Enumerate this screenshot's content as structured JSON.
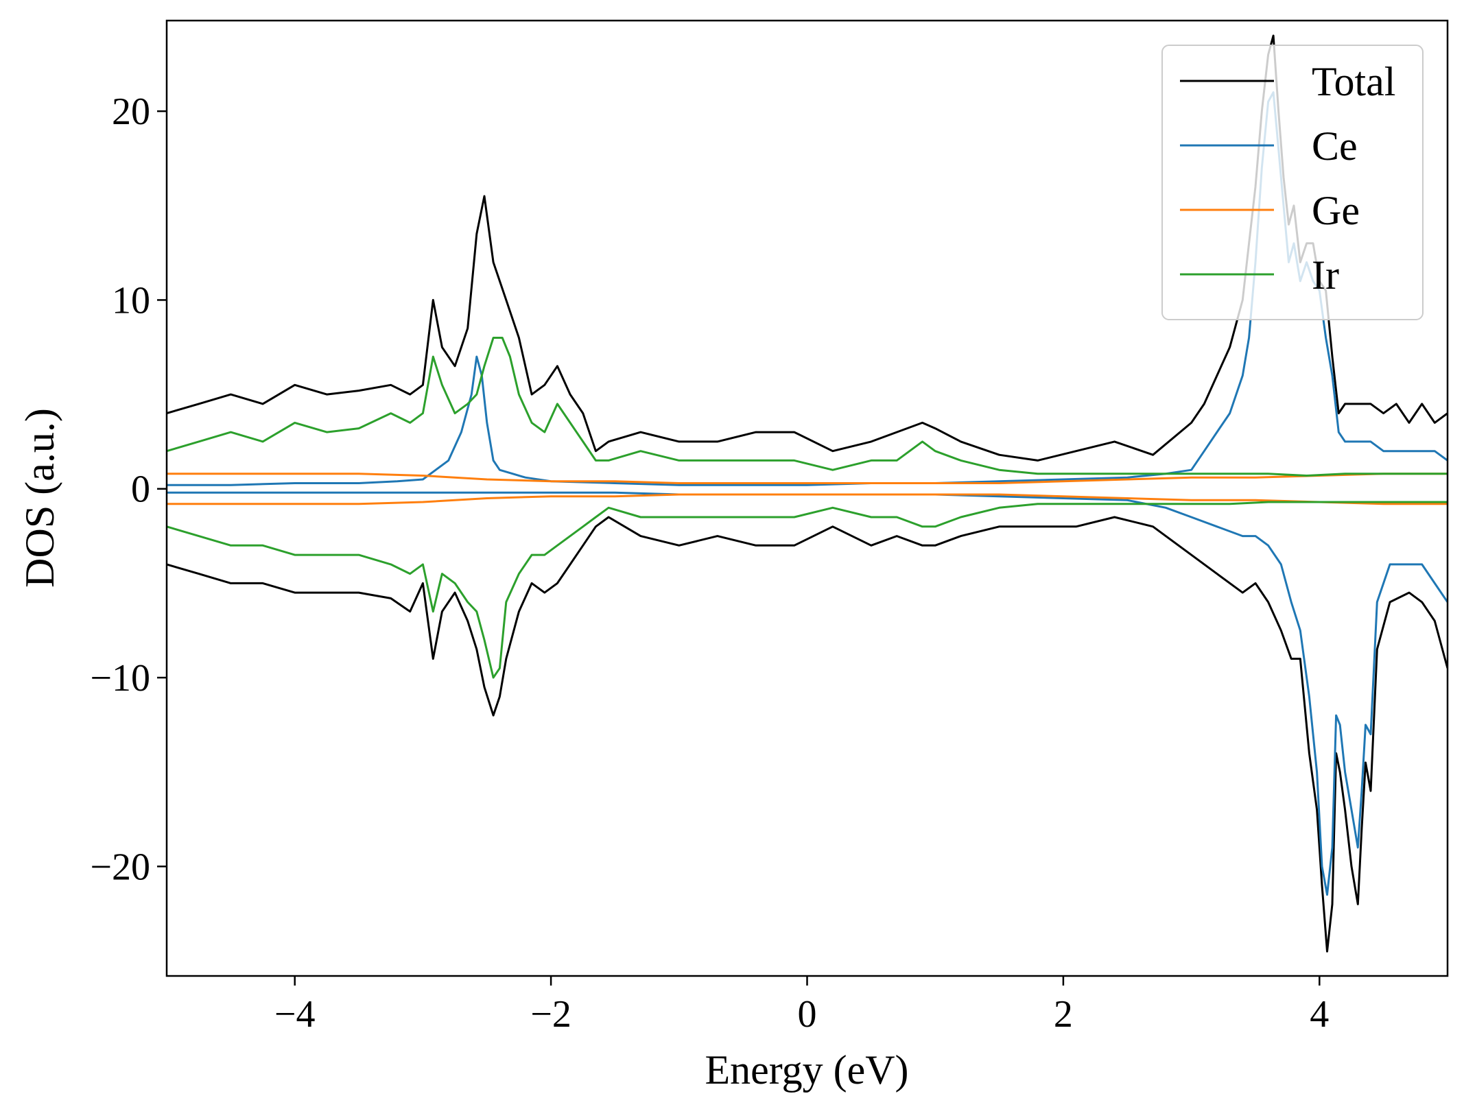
{
  "chart_data": {
    "type": "line",
    "title": "",
    "xlabel": "Energy (eV)",
    "ylabel": "DOS (a.u.)",
    "xlim": [
      -5,
      5
    ],
    "ylim": [
      -25.8,
      24.8
    ],
    "xticks": [
      -4,
      -2,
      0,
      2,
      4
    ],
    "yticks": [
      -20,
      -10,
      0,
      10,
      20
    ],
    "xtick_labels": [
      "−4",
      "−2",
      "0",
      "2",
      "4"
    ],
    "ytick_labels": [
      "−20",
      "−10",
      "0",
      "10",
      "20"
    ],
    "grid": false,
    "legend_position": "top-right",
    "legend": [
      "Total",
      "Ce",
      "Ge",
      "Ir"
    ],
    "series": [
      {
        "name": "Total",
        "color": "#000000",
        "x": [
          -5.0,
          -4.75,
          -4.5,
          -4.25,
          -4.0,
          -3.75,
          -3.5,
          -3.25,
          -3.1,
          -3.0,
          -2.92,
          -2.85,
          -2.75,
          -2.65,
          -2.58,
          -2.52,
          -2.45,
          -2.35,
          -2.25,
          -2.15,
          -2.05,
          -1.95,
          -1.85,
          -1.75,
          -1.65,
          -1.55,
          -1.3,
          -1.0,
          -0.7,
          -0.4,
          -0.1,
          0.2,
          0.5,
          0.7,
          0.9,
          1.0,
          1.2,
          1.5,
          1.8,
          2.1,
          2.4,
          2.7,
          3.0,
          3.1,
          3.2,
          3.3,
          3.4,
          3.45,
          3.5,
          3.55,
          3.6,
          3.64,
          3.68,
          3.72,
          3.76,
          3.8,
          3.85,
          3.9,
          3.95,
          4.0,
          4.05,
          4.1,
          4.15,
          4.2,
          4.3,
          4.4,
          4.5,
          4.6,
          4.7,
          4.8,
          4.9,
          5.0
        ],
        "values": [
          4.0,
          4.5,
          5.0,
          4.5,
          5.5,
          5.0,
          5.2,
          5.5,
          5.0,
          5.5,
          10.0,
          7.5,
          6.5,
          8.5,
          13.5,
          15.5,
          12.0,
          10.0,
          8.0,
          5.0,
          5.5,
          6.5,
          5.0,
          4.0,
          2.0,
          2.5,
          3.0,
          2.5,
          2.5,
          3.0,
          3.0,
          2.0,
          2.5,
          3.0,
          3.5,
          3.2,
          2.5,
          1.8,
          1.5,
          2.0,
          2.5,
          1.8,
          3.5,
          4.5,
          6.0,
          7.5,
          10.0,
          13.0,
          16.0,
          20.0,
          23.0,
          24.0,
          20.0,
          16.5,
          14.0,
          15.0,
          12.0,
          13.0,
          13.0,
          11.0,
          10.5,
          7.0,
          4.0,
          4.5,
          4.5,
          4.5,
          4.0,
          4.5,
          3.5,
          4.5,
          3.5,
          4.0
        ]
      },
      {
        "name": "Total",
        "color": "#000000",
        "x": [
          -5.0,
          -4.75,
          -4.5,
          -4.25,
          -4.0,
          -3.75,
          -3.5,
          -3.25,
          -3.1,
          -3.0,
          -2.92,
          -2.85,
          -2.75,
          -2.65,
          -2.58,
          -2.52,
          -2.45,
          -2.4,
          -2.35,
          -2.25,
          -2.15,
          -2.05,
          -1.95,
          -1.85,
          -1.75,
          -1.65,
          -1.55,
          -1.3,
          -1.0,
          -0.7,
          -0.4,
          -0.1,
          0.2,
          0.5,
          0.7,
          0.9,
          1.0,
          1.2,
          1.5,
          1.8,
          2.1,
          2.4,
          2.7,
          3.0,
          3.2,
          3.4,
          3.5,
          3.6,
          3.7,
          3.78,
          3.85,
          3.92,
          3.98,
          4.02,
          4.06,
          4.1,
          4.13,
          4.16,
          4.2,
          4.25,
          4.3,
          4.33,
          4.36,
          4.4,
          4.45,
          4.55,
          4.7,
          4.8,
          4.9,
          5.0
        ],
        "values": [
          -4.0,
          -4.5,
          -5.0,
          -5.0,
          -5.5,
          -5.5,
          -5.5,
          -5.8,
          -6.5,
          -5.0,
          -9.0,
          -6.5,
          -5.5,
          -7.0,
          -8.5,
          -10.5,
          -12.0,
          -11.0,
          -9.0,
          -6.5,
          -5.0,
          -5.5,
          -5.0,
          -4.0,
          -3.0,
          -2.0,
          -1.5,
          -2.5,
          -3.0,
          -2.5,
          -3.0,
          -3.0,
          -2.0,
          -3.0,
          -2.5,
          -3.0,
          -3.0,
          -2.5,
          -2.0,
          -2.0,
          -2.0,
          -1.5,
          -2.0,
          -3.5,
          -4.5,
          -5.5,
          -5.0,
          -6.0,
          -7.5,
          -9.0,
          -9.0,
          -14.0,
          -17.0,
          -21.0,
          -24.5,
          -22.0,
          -14.0,
          -15.0,
          -17.0,
          -20.0,
          -22.0,
          -18.0,
          -14.5,
          -16.0,
          -8.5,
          -6.0,
          -5.5,
          -6.0,
          -7.0,
          -9.5
        ]
      },
      {
        "name": "Ce",
        "color": "#1f77b4",
        "x": [
          -5.0,
          -4.5,
          -4.0,
          -3.5,
          -3.2,
          -3.0,
          -2.9,
          -2.8,
          -2.7,
          -2.62,
          -2.58,
          -2.54,
          -2.5,
          -2.45,
          -2.4,
          -2.3,
          -2.2,
          -2.0,
          -1.5,
          -1.0,
          -0.5,
          0.0,
          0.5,
          1.0,
          1.5,
          2.0,
          2.5,
          2.8,
          3.0,
          3.1,
          3.2,
          3.3,
          3.4,
          3.45,
          3.5,
          3.55,
          3.6,
          3.64,
          3.68,
          3.72,
          3.76,
          3.8,
          3.85,
          3.9,
          3.95,
          4.0,
          4.05,
          4.1,
          4.15,
          4.2,
          4.3,
          4.4,
          4.5,
          4.6,
          4.7,
          4.8,
          4.9,
          5.0
        ],
        "values": [
          0.2,
          0.2,
          0.3,
          0.3,
          0.4,
          0.5,
          1.0,
          1.5,
          3.0,
          5.0,
          7.0,
          6.0,
          3.5,
          1.5,
          1.0,
          0.8,
          0.6,
          0.4,
          0.3,
          0.2,
          0.2,
          0.2,
          0.3,
          0.3,
          0.4,
          0.5,
          0.6,
          0.8,
          1.0,
          2.0,
          3.0,
          4.0,
          6.0,
          8.0,
          12.0,
          17.0,
          20.5,
          21.0,
          18.0,
          15.0,
          12.0,
          13.0,
          11.0,
          12.0,
          11.0,
          10.5,
          8.0,
          6.0,
          3.0,
          2.5,
          2.5,
          2.5,
          2.0,
          2.0,
          2.0,
          2.0,
          2.0,
          1.5
        ]
      },
      {
        "name": "Ce",
        "color": "#1f77b4",
        "x": [
          -5.0,
          -4.5,
          -4.0,
          -3.5,
          -3.0,
          -2.5,
          -2.0,
          -1.5,
          -1.0,
          -0.5,
          0.0,
          0.5,
          1.0,
          1.5,
          2.0,
          2.5,
          2.8,
          3.0,
          3.2,
          3.4,
          3.5,
          3.6,
          3.7,
          3.78,
          3.85,
          3.92,
          3.98,
          4.02,
          4.06,
          4.1,
          4.13,
          4.16,
          4.2,
          4.25,
          4.3,
          4.33,
          4.36,
          4.4,
          4.45,
          4.55,
          4.7,
          4.8,
          4.9,
          5.0
        ],
        "values": [
          -0.2,
          -0.2,
          -0.2,
          -0.2,
          -0.2,
          -0.2,
          -0.2,
          -0.2,
          -0.3,
          -0.3,
          -0.3,
          -0.3,
          -0.3,
          -0.4,
          -0.5,
          -0.6,
          -1.0,
          -1.5,
          -2.0,
          -2.5,
          -2.5,
          -3.0,
          -4.0,
          -6.0,
          -7.5,
          -11.0,
          -15.0,
          -20.0,
          -21.5,
          -19.0,
          -12.0,
          -12.5,
          -15.0,
          -17.0,
          -19.0,
          -16.0,
          -12.5,
          -13.0,
          -6.0,
          -4.0,
          -4.0,
          -4.0,
          -5.0,
          -6.0
        ]
      },
      {
        "name": "Ge",
        "color": "#ff7f0e",
        "x": [
          -5.0,
          -4.5,
          -4.0,
          -3.5,
          -3.0,
          -2.5,
          -2.0,
          -1.5,
          -1.0,
          -0.5,
          0.0,
          0.5,
          1.0,
          1.5,
          2.0,
          2.5,
          3.0,
          3.5,
          4.0,
          4.5,
          5.0
        ],
        "values": [
          0.8,
          0.8,
          0.8,
          0.8,
          0.7,
          0.5,
          0.4,
          0.4,
          0.3,
          0.3,
          0.3,
          0.3,
          0.3,
          0.3,
          0.4,
          0.5,
          0.6,
          0.6,
          0.7,
          0.8,
          0.8
        ]
      },
      {
        "name": "Ge",
        "color": "#ff7f0e",
        "x": [
          -5.0,
          -4.5,
          -4.0,
          -3.5,
          -3.0,
          -2.5,
          -2.0,
          -1.5,
          -1.0,
          -0.5,
          0.0,
          0.5,
          1.0,
          1.5,
          2.0,
          2.5,
          3.0,
          3.5,
          4.0,
          4.5,
          5.0
        ],
        "values": [
          -0.8,
          -0.8,
          -0.8,
          -0.8,
          -0.7,
          -0.5,
          -0.4,
          -0.4,
          -0.3,
          -0.3,
          -0.3,
          -0.3,
          -0.3,
          -0.3,
          -0.4,
          -0.5,
          -0.6,
          -0.6,
          -0.7,
          -0.8,
          -0.8
        ]
      },
      {
        "name": "Ir",
        "color": "#2ca02c",
        "x": [
          -5.0,
          -4.75,
          -4.5,
          -4.25,
          -4.0,
          -3.75,
          -3.5,
          -3.25,
          -3.1,
          -3.0,
          -2.92,
          -2.85,
          -2.75,
          -2.65,
          -2.58,
          -2.52,
          -2.45,
          -2.38,
          -2.32,
          -2.25,
          -2.15,
          -2.05,
          -1.95,
          -1.85,
          -1.75,
          -1.65,
          -1.55,
          -1.3,
          -1.0,
          -0.7,
          -0.4,
          -0.1,
          0.2,
          0.5,
          0.7,
          0.9,
          1.0,
          1.2,
          1.5,
          1.8,
          2.1,
          2.4,
          2.7,
          3.0,
          3.3,
          3.6,
          3.9,
          4.2,
          4.5,
          4.8,
          5.0
        ],
        "values": [
          2.0,
          2.5,
          3.0,
          2.5,
          3.5,
          3.0,
          3.2,
          4.0,
          3.5,
          4.0,
          7.0,
          5.5,
          4.0,
          4.5,
          5.0,
          6.5,
          8.0,
          8.0,
          7.0,
          5.0,
          3.5,
          3.0,
          4.5,
          3.5,
          2.5,
          1.5,
          1.5,
          2.0,
          1.5,
          1.5,
          1.5,
          1.5,
          1.0,
          1.5,
          1.5,
          2.5,
          2.0,
          1.5,
          1.0,
          0.8,
          0.8,
          0.8,
          0.8,
          0.8,
          0.8,
          0.8,
          0.7,
          0.8,
          0.8,
          0.8,
          0.8
        ]
      },
      {
        "name": "Ir",
        "color": "#2ca02c",
        "x": [
          -5.0,
          -4.75,
          -4.5,
          -4.25,
          -4.0,
          -3.75,
          -3.5,
          -3.25,
          -3.1,
          -3.0,
          -2.92,
          -2.85,
          -2.75,
          -2.65,
          -2.58,
          -2.52,
          -2.45,
          -2.4,
          -2.35,
          -2.25,
          -2.15,
          -2.05,
          -1.95,
          -1.85,
          -1.75,
          -1.65,
          -1.55,
          -1.3,
          -1.0,
          -0.7,
          -0.4,
          -0.1,
          0.2,
          0.5,
          0.7,
          0.9,
          1.0,
          1.2,
          1.5,
          1.8,
          2.1,
          2.4,
          2.7,
          3.0,
          3.3,
          3.6,
          3.9,
          4.2,
          4.5,
          4.8,
          5.0
        ],
        "values": [
          -2.0,
          -2.5,
          -3.0,
          -3.0,
          -3.5,
          -3.5,
          -3.5,
          -4.0,
          -4.5,
          -4.0,
          -6.5,
          -4.5,
          -5.0,
          -6.0,
          -6.5,
          -8.0,
          -10.0,
          -9.5,
          -6.0,
          -4.5,
          -3.5,
          -3.5,
          -3.0,
          -2.5,
          -2.0,
          -1.5,
          -1.0,
          -1.5,
          -1.5,
          -1.5,
          -1.5,
          -1.5,
          -1.0,
          -1.5,
          -1.5,
          -2.0,
          -2.0,
          -1.5,
          -1.0,
          -0.8,
          -0.8,
          -0.8,
          -0.8,
          -0.8,
          -0.8,
          -0.7,
          -0.7,
          -0.7,
          -0.7,
          -0.7,
          -0.7
        ]
      }
    ]
  }
}
